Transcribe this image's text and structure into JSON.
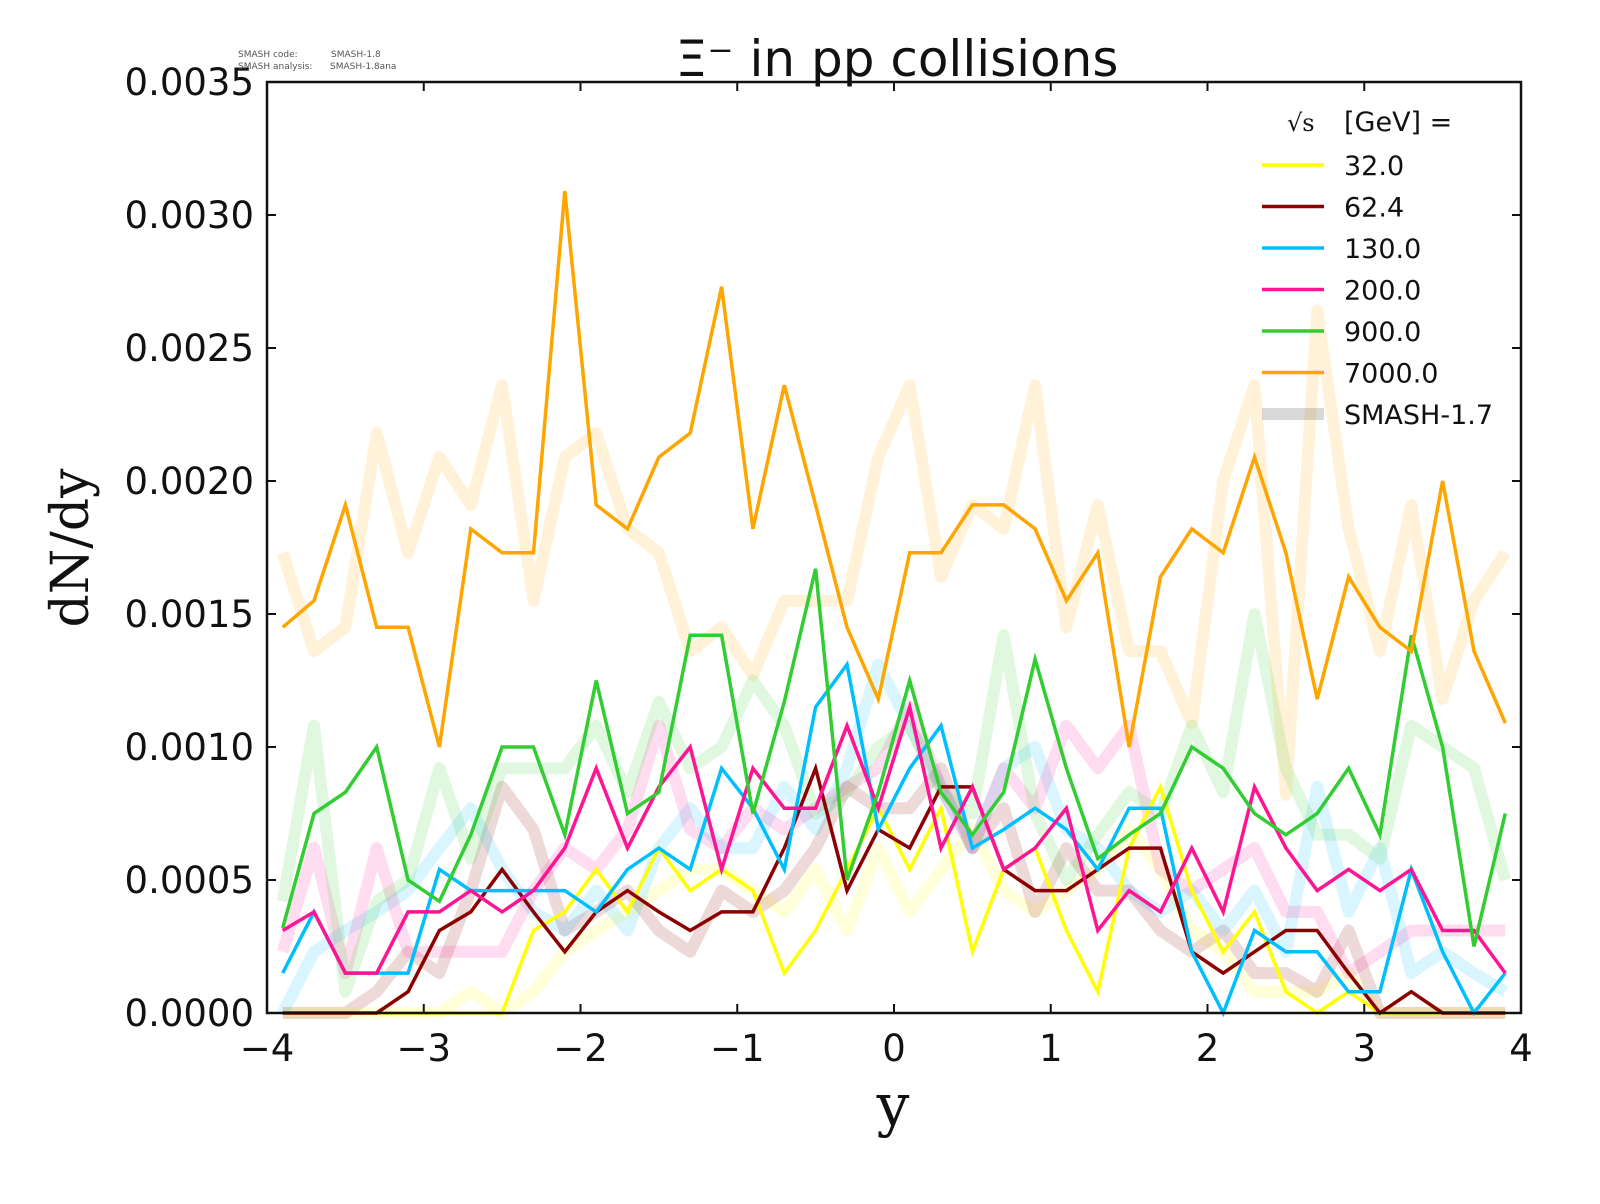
{
  "chart_data": {
    "type": "line",
    "title": "Ξ⁻ in pp collisions",
    "xlabel": "y",
    "ylabel": "dN/dy",
    "xlim": [
      -4,
      4
    ],
    "ylim": [
      0,
      0.0035
    ],
    "xticks": [
      "−4",
      "−3",
      "−2",
      "−1",
      "0",
      "1",
      "2",
      "3",
      "4"
    ],
    "xtick_values": [
      -4,
      -3,
      -2,
      -1,
      0,
      1,
      2,
      3,
      4
    ],
    "yticks": [
      "0.0000",
      "0.0005",
      "0.0010",
      "0.0015",
      "0.0020",
      "0.0025",
      "0.0030",
      "0.0035"
    ],
    "ytick_values": [
      0,
      0.0005,
      0.001,
      0.0015,
      0.002,
      0.0025,
      0.003,
      0.0035
    ],
    "grid": false,
    "legend_title": "√s  [GeV] =",
    "legend_sqrt": "√s",
    "legend_unit": "[GeV] =",
    "legend_position": "top-right",
    "legend_reference_label": "SMASH-1.7",
    "annotation": {
      "code_label": "SMASH code:",
      "code_value": "SMASH-1.8",
      "analysis_label": "SMASH analysis:",
      "analysis_value": "SMASH-1.8ana"
    },
    "x": [
      -3.9,
      -3.7,
      -3.5,
      -3.3,
      -3.1,
      -2.9,
      -2.7,
      -2.5,
      -2.3,
      -2.1,
      -1.9,
      -1.7,
      -1.5,
      -1.3,
      -1.1,
      -0.9,
      -0.7,
      -0.5,
      -0.3,
      -0.1,
      0.1,
      0.3,
      0.5,
      0.7,
      0.9,
      1.1,
      1.3,
      1.5,
      1.7,
      1.9,
      2.1,
      2.3,
      2.5,
      2.7,
      2.9,
      3.1,
      3.3,
      3.5,
      3.7,
      3.9
    ],
    "series": [
      {
        "name": "32.0",
        "color": "#ffff00",
        "values": [
          0,
          0,
          0,
          0,
          0,
          0,
          0,
          0,
          0.00031,
          0.00038,
          0.00054,
          0.00038,
          0.00062,
          0.00046,
          0.00054,
          0.00046,
          0.00015,
          0.00031,
          0.00054,
          0.00077,
          0.00054,
          0.00077,
          0.00023,
          0.00054,
          0.00062,
          0.00031,
          8e-05,
          0.00062,
          0.00085,
          0.00046,
          0.00023,
          0.00038,
          8e-05,
          0,
          8e-05,
          0,
          0,
          0,
          0,
          0
        ],
        "reference": [
          0,
          0,
          0,
          0,
          0,
          0,
          8e-05,
          0,
          8e-05,
          0.00023,
          0.00031,
          0.00038,
          0.00046,
          0.00054,
          0.00054,
          0.00046,
          0.00038,
          0.00054,
          0.00031,
          0.00062,
          0.00038,
          0.00054,
          0.00069,
          0.00046,
          0.00038,
          0.00046,
          0.00054,
          0.00069,
          0.00054,
          0.00031,
          0.00023,
          8e-05,
          8e-05,
          8e-05,
          0.00015,
          0,
          0,
          0,
          0,
          0
        ]
      },
      {
        "name": "62.4",
        "color": "#8b0000",
        "values": [
          0,
          0,
          0,
          0,
          8e-05,
          0.00031,
          0.00038,
          0.00054,
          0.00038,
          0.00023,
          0.00038,
          0.00046,
          0.00038,
          0.00031,
          0.00038,
          0.00038,
          0.00062,
          0.00092,
          0.00046,
          0.00069,
          0.00062,
          0.00085,
          0.00085,
          0.00054,
          0.00046,
          0.00046,
          0.00054,
          0.00062,
          0.00062,
          0.00023,
          0.00015,
          0.00023,
          0.00031,
          0.00031,
          0.00015,
          0,
          8e-05,
          0,
          0,
          0
        ],
        "reference": [
          0,
          0,
          0,
          8e-05,
          0.00023,
          0.00015,
          0.00046,
          0.00085,
          0.00069,
          0.00031,
          0.00038,
          0.00046,
          0.00031,
          0.00023,
          0.00046,
          0.00038,
          0.00046,
          0.00062,
          0.00085,
          0.00077,
          0.00077,
          0.00092,
          0.00062,
          0.00077,
          0.00038,
          0.00062,
          0.00046,
          0.00046,
          0.00031,
          0.00023,
          0.00031,
          0.00015,
          0.00015,
          8e-05,
          0.00031,
          0,
          0,
          0,
          0,
          0
        ]
      },
      {
        "name": "130.0",
        "color": "#00bfff",
        "values": [
          0.00015,
          0.00038,
          0.00015,
          0.00015,
          0.00015,
          0.00054,
          0.00046,
          0.00046,
          0.00046,
          0.00046,
          0.00038,
          0.00054,
          0.00062,
          0.00054,
          0.00092,
          0.00077,
          0.00054,
          0.00115,
          0.00131,
          0.00069,
          0.00092,
          0.00108,
          0.00062,
          0.00069,
          0.00077,
          0.00069,
          0.00054,
          0.00077,
          0.00077,
          0.00023,
          0,
          0.00031,
          0.00023,
          0.00023,
          8e-05,
          8e-05,
          0.00054,
          0.00023,
          0,
          0.00015
        ],
        "reference": [
          0,
          0.00023,
          0.00031,
          0.00038,
          0.00046,
          0.00062,
          0.00077,
          0.00054,
          0.00038,
          0.00031,
          0.00046,
          0.00031,
          0.00062,
          0.00077,
          0.00062,
          0.00062,
          0.00085,
          0.00069,
          0.00092,
          0.00131,
          0.00108,
          0.00085,
          0.00062,
          0.00092,
          0.001,
          0.00069,
          0.00062,
          0.00046,
          0.00038,
          0.00046,
          0.00031,
          0.00046,
          0.00023,
          0.00085,
          0.00038,
          0.00062,
          0.00015,
          0.00023,
          0.00015,
          8e-05
        ]
      },
      {
        "name": "200.0",
        "color": "#ff1493",
        "values": [
          0.00031,
          0.00038,
          0.00015,
          0.00015,
          0.00038,
          0.00038,
          0.00046,
          0.00038,
          0.00046,
          0.00062,
          0.00092,
          0.00062,
          0.00085,
          0.001,
          0.00054,
          0.00092,
          0.00077,
          0.00077,
          0.00108,
          0.00077,
          0.00115,
          0.00062,
          0.00085,
          0.00054,
          0.00062,
          0.00077,
          0.00031,
          0.00046,
          0.00038,
          0.00062,
          0.00038,
          0.00085,
          0.00062,
          0.00046,
          0.00054,
          0.00046,
          0.00054,
          0.00031,
          0.00031,
          0.00015
        ],
        "reference": [
          0.00023,
          0.00062,
          0.00015,
          0.00062,
          0.00023,
          0.00023,
          0.00023,
          0.00023,
          0.00046,
          0.00062,
          0.00054,
          0.00069,
          0.00108,
          0.00069,
          0.00062,
          0.00077,
          0.00069,
          0.00077,
          0.00085,
          0.00092,
          0.00115,
          0.00085,
          0.00062,
          0.00092,
          0.00077,
          0.00108,
          0.00092,
          0.00108,
          0.00054,
          0.00046,
          0.00054,
          0.00062,
          0.00038,
          0.00038,
          0.00015,
          0.00023,
          0.00031,
          0.00031,
          0.00031,
          0.00031
        ]
      },
      {
        "name": "900.0",
        "color": "#32cd32",
        "values": [
          0.00032,
          0.00075,
          0.00083,
          0.001,
          0.0005,
          0.00042,
          0.00067,
          0.001,
          0.001,
          0.00067,
          0.00125,
          0.00075,
          0.00083,
          0.00142,
          0.00142,
          0.00075,
          0.00117,
          0.00167,
          0.0005,
          0.00083,
          0.00125,
          0.00083,
          0.00067,
          0.00083,
          0.00133,
          0.00092,
          0.00058,
          0.00067,
          0.00075,
          0.001,
          0.00092,
          0.00075,
          0.00067,
          0.00075,
          0.00092,
          0.00067,
          0.00142,
          0.001,
          0.00025,
          0.00075
        ],
        "reference": [
          0.00042,
          0.00108,
          8e-05,
          0.00042,
          0.0005,
          0.00092,
          0.00058,
          0.00092,
          0.00092,
          0.00092,
          0.00108,
          0.00083,
          0.00117,
          0.00092,
          0.001,
          0.00125,
          0.00108,
          0.00075,
          0.00083,
          0.001,
          0.00108,
          0.00083,
          0.00075,
          0.00142,
          0.00075,
          0.0005,
          0.00067,
          0.00083,
          0.00075,
          0.00108,
          0.00083,
          0.0015,
          0.00092,
          0.00067,
          0.00067,
          0.00058,
          0.00108,
          0.001,
          0.00092,
          0.0005
        ]
      },
      {
        "name": "7000.0",
        "color": "#ffa500",
        "values": [
          0.00145,
          0.00155,
          0.00191,
          0.00145,
          0.00145,
          0.001,
          0.00182,
          0.00173,
          0.00173,
          0.00309,
          0.00191,
          0.00182,
          0.00209,
          0.00218,
          0.00273,
          0.00182,
          0.00236,
          0.00191,
          0.00145,
          0.00118,
          0.00173,
          0.00173,
          0.00191,
          0.00191,
          0.00182,
          0.00155,
          0.00173,
          0.001,
          0.00164,
          0.00182,
          0.00173,
          0.00209,
          0.00173,
          0.00118,
          0.00164,
          0.00145,
          0.00136,
          0.002,
          0.00136,
          0.00109
        ],
        "reference": [
          0.00173,
          0.00136,
          0.00145,
          0.00218,
          0.00173,
          0.00209,
          0.00191,
          0.00236,
          0.00155,
          0.00209,
          0.00218,
          0.00182,
          0.00173,
          0.00136,
          0.00145,
          0.00127,
          0.00155,
          0.00155,
          0.00155,
          0.00209,
          0.00236,
          0.00164,
          0.00191,
          0.00182,
          0.00236,
          0.00145,
          0.00191,
          0.00136,
          0.00136,
          0.00109,
          0.002,
          0.00236,
          0.00082,
          0.00264,
          0.00182,
          0.00136,
          0.00191,
          0.00118,
          0.00155,
          0.00173
        ]
      }
    ]
  }
}
